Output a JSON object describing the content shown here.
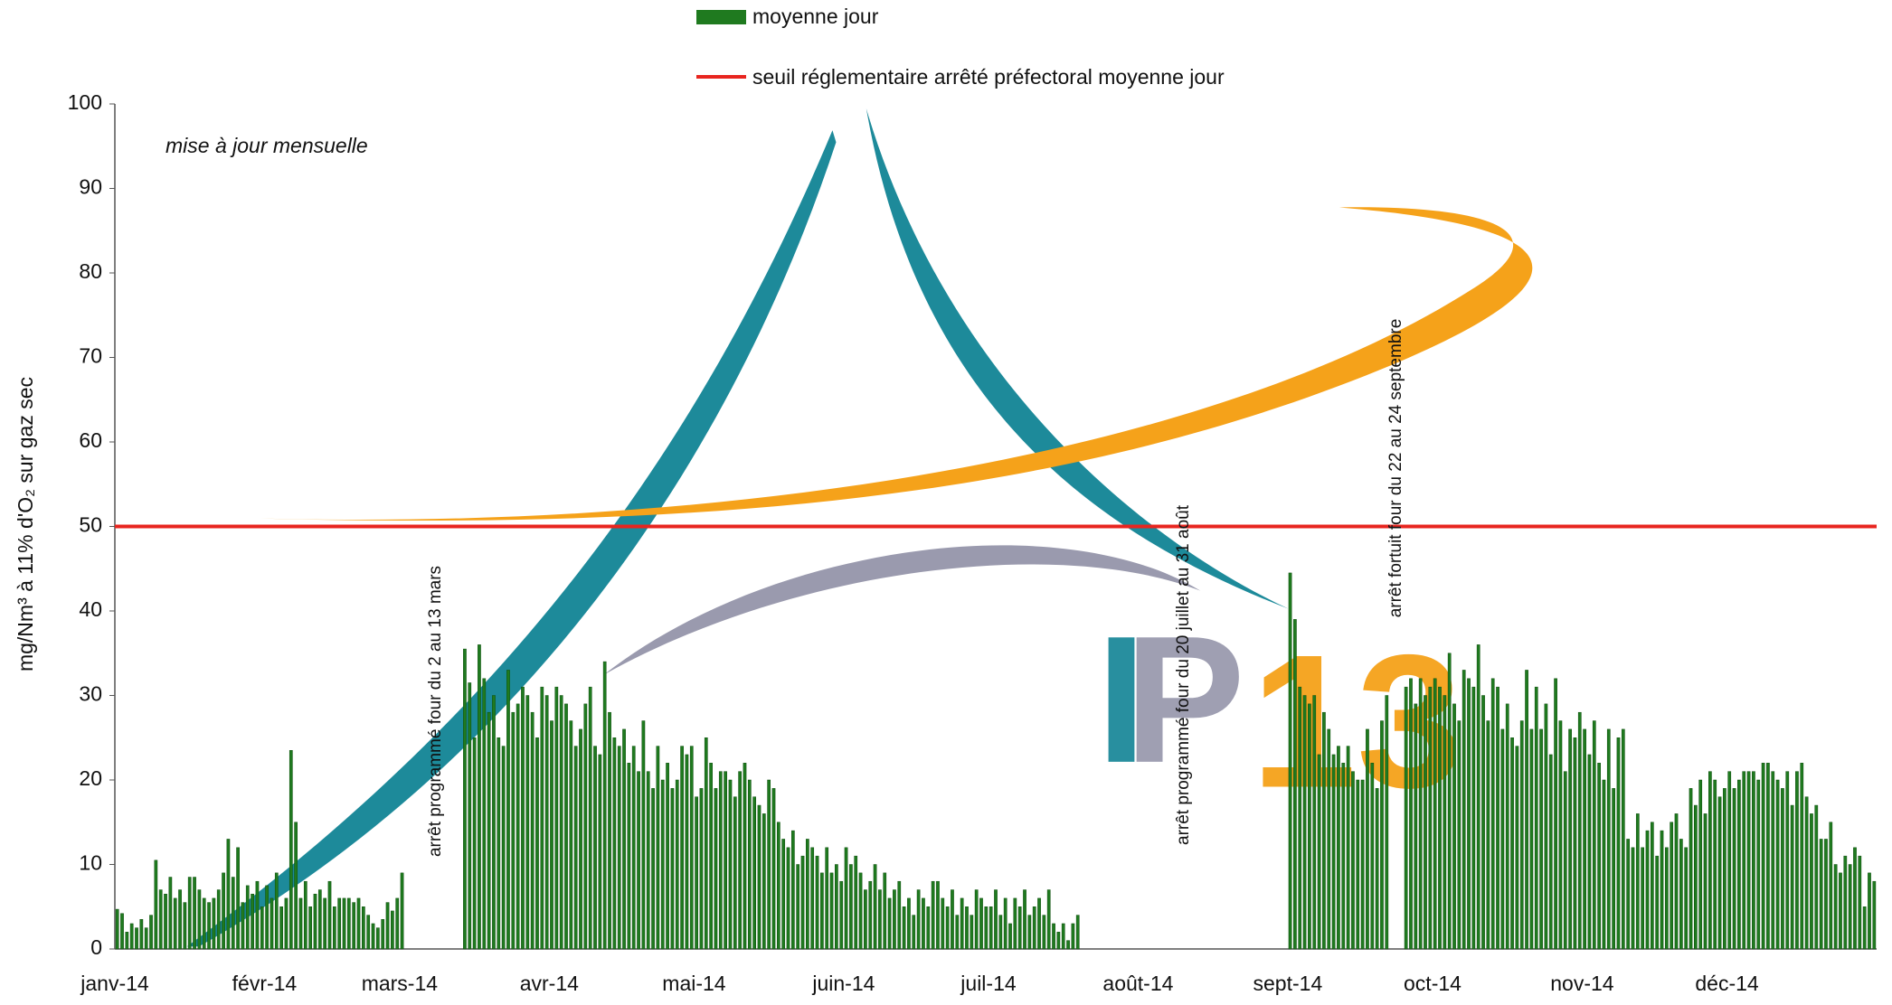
{
  "chart_data": {
    "type": "bar",
    "y_label": "mg/Nm³ à 11% d'O₂ sur gaz sec",
    "note": "mise à jour mensuelle",
    "annotations": [
      {
        "text": "arrêt programmé four du 2 au 13 mars",
        "at": 66
      },
      {
        "text": "arrêt programmé four du 20 juillet au 31 août",
        "at": 221
      },
      {
        "text": "arrêt fortuit four du 22 au 24 septembre",
        "at": 265
      }
    ],
    "logo_text": [
      "I",
      "P",
      "13"
    ],
    "ylim": [
      0,
      100
    ],
    "yticks": [
      0,
      10,
      20,
      30,
      40,
      50,
      60,
      70,
      80,
      90,
      100
    ],
    "grid": false,
    "categories": [
      "janv-14",
      null,
      null,
      null,
      null,
      null,
      null,
      null,
      null,
      null,
      null,
      null,
      null,
      null,
      null,
      null,
      null,
      null,
      null,
      null,
      null,
      null,
      null,
      null,
      null,
      null,
      null,
      null,
      null,
      null,
      null,
      "févr-14",
      null,
      null,
      null,
      null,
      null,
      null,
      null,
      null,
      null,
      null,
      null,
      null,
      null,
      null,
      null,
      null,
      null,
      null,
      null,
      null,
      null,
      null,
      null,
      null,
      null,
      null,
      null,
      "mars-14",
      null,
      null,
      null,
      null,
      null,
      null,
      null,
      null,
      null,
      null,
      null,
      null,
      null,
      null,
      null,
      null,
      null,
      null,
      null,
      null,
      null,
      null,
      null,
      null,
      null,
      null,
      null,
      null,
      null,
      null,
      "avr-14",
      null,
      null,
      null,
      null,
      null,
      null,
      null,
      null,
      null,
      null,
      null,
      null,
      null,
      null,
      null,
      null,
      null,
      null,
      null,
      null,
      null,
      null,
      null,
      null,
      null,
      null,
      null,
      null,
      null,
      "mai-14",
      null,
      null,
      null,
      null,
      null,
      null,
      null,
      null,
      null,
      null,
      null,
      null,
      null,
      null,
      null,
      null,
      null,
      null,
      null,
      null,
      null,
      null,
      null,
      null,
      null,
      null,
      null,
      null,
      null,
      null,
      "juin-14",
      null,
      null,
      null,
      null,
      null,
      null,
      null,
      null,
      null,
      null,
      null,
      null,
      null,
      null,
      null,
      null,
      null,
      null,
      null,
      null,
      null,
      null,
      null,
      null,
      null,
      null,
      null,
      null,
      null,
      "juil-14",
      null,
      null,
      null,
      null,
      null,
      null,
      null,
      null,
      null,
      null,
      null,
      null,
      null,
      null,
      null,
      null,
      null,
      null,
      null,
      null,
      null,
      null,
      null,
      null,
      null,
      null,
      null,
      null,
      null,
      null,
      "août-14",
      null,
      null,
      null,
      null,
      null,
      null,
      null,
      null,
      null,
      null,
      null,
      null,
      null,
      null,
      null,
      null,
      null,
      null,
      null,
      null,
      null,
      null,
      null,
      null,
      null,
      null,
      null,
      null,
      null,
      null,
      "sept-14",
      null,
      null,
      null,
      null,
      null,
      null,
      null,
      null,
      null,
      null,
      null,
      null,
      null,
      null,
      null,
      null,
      null,
      null,
      null,
      null,
      null,
      null,
      null,
      null,
      null,
      null,
      null,
      null,
      null,
      "oct-14",
      null,
      null,
      null,
      null,
      null,
      null,
      null,
      null,
      null,
      null,
      null,
      null,
      null,
      null,
      null,
      null,
      null,
      null,
      null,
      null,
      null,
      null,
      null,
      null,
      null,
      null,
      null,
      null,
      null,
      null,
      "nov-14",
      null,
      null,
      null,
      null,
      null,
      null,
      null,
      null,
      null,
      null,
      null,
      null,
      null,
      null,
      null,
      null,
      null,
      null,
      null,
      null,
      null,
      null,
      null,
      null,
      null,
      null,
      null,
      null,
      null,
      "déc-14",
      null,
      null,
      null,
      null,
      null,
      null,
      null,
      null,
      null,
      null,
      null,
      null,
      null,
      null,
      null,
      null,
      null,
      null,
      null,
      null,
      null,
      null,
      null,
      null,
      null,
      null,
      null,
      null,
      null,
      null
    ],
    "series": [
      {
        "name": "moyenne jour",
        "color": "#1f7a1f",
        "values": [
          4.7,
          4.2,
          2,
          3,
          2.5,
          3.5,
          2.5,
          4,
          10.5,
          7,
          6.5,
          8.5,
          6,
          7,
          5.5,
          8.5,
          8.5,
          7,
          6,
          5.5,
          6,
          7,
          9,
          13,
          8.5,
          12,
          5.5,
          7.5,
          6.5,
          8,
          5,
          7.5,
          6,
          9,
          5,
          6,
          23.5,
          15,
          6,
          8,
          5,
          6.5,
          7,
          6,
          8,
          5,
          6,
          6,
          6,
          5.5,
          6,
          5,
          4,
          3,
          2.5,
          3.5,
          5.5,
          4.5,
          6,
          9,
          null,
          null,
          null,
          null,
          null,
          null,
          null,
          null,
          null,
          null,
          null,
          null,
          35.5,
          31.5,
          25,
          36,
          32,
          28,
          30,
          25,
          24,
          33,
          28,
          29,
          31,
          30,
          28,
          25,
          31,
          30,
          27,
          31,
          30,
          29,
          27,
          24,
          26,
          29,
          31,
          24,
          23,
          34,
          28,
          25,
          24,
          26,
          22,
          24,
          21,
          27,
          21,
          19,
          24,
          20,
          22,
          19,
          20,
          24,
          23,
          24,
          18,
          19,
          25,
          22,
          19,
          21,
          21,
          20,
          18,
          21,
          22,
          20,
          18,
          17,
          16,
          20,
          19,
          15,
          13,
          12,
          14,
          10,
          11,
          13,
          12,
          11,
          9,
          12,
          9,
          10,
          8,
          12,
          10,
          11,
          9,
          7,
          8,
          10,
          7,
          9,
          6,
          7,
          8,
          5,
          6,
          4,
          7,
          6,
          5,
          8,
          8,
          6,
          5,
          7,
          4,
          6,
          5,
          4,
          7,
          6,
          5,
          5,
          7,
          4,
          6,
          3,
          6,
          5,
          7,
          4,
          5,
          6,
          4,
          7,
          3,
          2,
          3,
          1,
          3,
          4,
          null,
          null,
          null,
          null,
          null,
          null,
          null,
          null,
          null,
          null,
          null,
          null,
          null,
          null,
          null,
          null,
          null,
          null,
          null,
          null,
          null,
          null,
          null,
          null,
          null,
          null,
          null,
          null,
          null,
          null,
          null,
          null,
          null,
          null,
          null,
          null,
          null,
          null,
          null,
          null,
          null,
          null,
          null,
          44.5,
          39,
          31,
          30,
          29,
          30,
          23,
          28,
          26,
          23,
          24,
          22,
          24,
          21,
          20,
          20,
          26,
          22,
          19,
          27,
          30,
          null,
          null,
          null,
          31,
          32,
          29,
          32,
          30,
          31,
          32,
          31,
          30,
          35,
          29,
          27,
          33,
          32,
          31,
          36,
          30,
          27,
          32,
          31,
          26,
          29,
          25,
          24,
          27,
          33,
          26,
          31,
          26,
          29,
          23,
          32,
          27,
          21,
          26,
          25,
          28,
          26,
          23,
          27,
          22,
          20,
          26,
          19,
          25,
          26,
          13,
          12,
          16,
          12,
          14,
          15,
          11,
          14,
          12,
          15,
          16,
          13,
          12,
          19,
          17,
          20,
          16,
          21,
          20,
          18,
          19,
          21,
          19,
          20,
          21,
          21,
          21,
          20,
          22,
          22,
          21,
          20,
          19,
          21,
          17,
          21,
          22,
          18,
          16,
          17,
          13,
          13,
          15,
          10,
          9,
          11,
          10,
          12,
          11,
          5,
          9,
          8
        ]
      }
    ],
    "threshold": {
      "name": "seuil réglementaire arrêté préfectoral moyenne jour",
      "color": "#e8251f",
      "value": 50
    }
  }
}
